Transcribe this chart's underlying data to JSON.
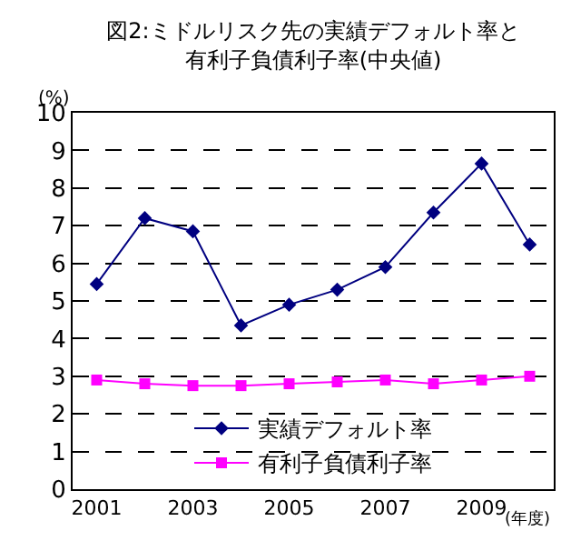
{
  "chart_data": {
    "type": "line",
    "title": "図2:ミドルリスク先の実績デフォルト率と有利子負債利子率(中央値)",
    "ylabel": "(%)",
    "xlabel": "(年度)",
    "categories": [
      "2001",
      null,
      "2003",
      null,
      "2005",
      null,
      "2007",
      null,
      "2009",
      null
    ],
    "series": [
      {
        "name": "実績デフォルト率",
        "color": "#000080",
        "marker": "diamond",
        "values": [
          5.45,
          7.2,
          6.85,
          4.35,
          4.9,
          5.3,
          5.9,
          7.35,
          8.65,
          6.5
        ]
      },
      {
        "name": "有利子負債利子率",
        "color": "#ff00ff",
        "marker": "square",
        "values": [
          2.9,
          2.8,
          2.75,
          2.75,
          2.8,
          2.85,
          2.9,
          2.8,
          2.9,
          3.0
        ]
      }
    ],
    "ylim": [
      0,
      10
    ],
    "yticks": [
      0,
      1,
      2,
      3,
      4,
      5,
      6,
      7,
      8,
      9,
      10
    ],
    "grid": "y",
    "legend": "bottom",
    "line_style": "solid"
  }
}
